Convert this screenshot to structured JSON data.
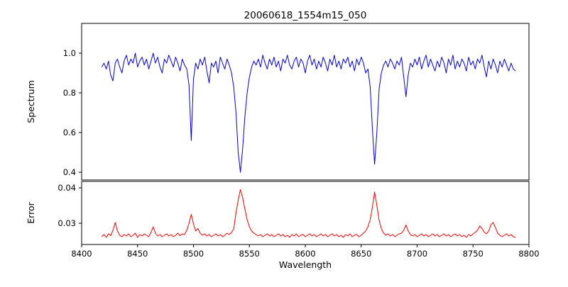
{
  "chart_data": {
    "type": "line",
    "title": "20060618_1554m15_050",
    "xlabel": "Wavelength",
    "xlim": [
      8400,
      8800
    ],
    "xticks": [
      8400,
      8450,
      8500,
      8550,
      8600,
      8650,
      8700,
      8750,
      8800
    ],
    "xticklabels": [
      "8400",
      "8450",
      "8500",
      "8550",
      "8600",
      "8650",
      "8700",
      "8750",
      "8800"
    ],
    "x_start": 8418,
    "x_step": 2,
    "grid": false,
    "legend": "none",
    "panels": [
      {
        "name": "spectrum",
        "ylabel": "Spectrum",
        "color": "#0000cc",
        "ylim": [
          0.361,
          1.15
        ],
        "yticks": [
          0.4,
          0.6,
          0.8,
          1.0
        ],
        "yticklabels": [
          "0.4",
          "0.6",
          "0.8",
          "1.0"
        ],
        "absorption_lines": [
          8498,
          8542,
          8662
        ],
        "values": [
          0.93,
          0.95,
          0.92,
          0.96,
          0.89,
          0.86,
          0.95,
          0.97,
          0.93,
          0.9,
          0.96,
          0.99,
          0.94,
          0.97,
          0.95,
          1.0,
          0.93,
          0.96,
          0.98,
          0.94,
          0.97,
          0.92,
          0.96,
          1.0,
          0.95,
          0.98,
          0.93,
          0.9,
          0.97,
          0.95,
          0.99,
          0.96,
          0.93,
          0.98,
          0.95,
          0.91,
          0.97,
          0.94,
          0.92,
          0.84,
          0.56,
          0.87,
          0.95,
          0.92,
          0.97,
          0.94,
          0.98,
          0.91,
          0.85,
          0.95,
          0.93,
          0.96,
          0.9,
          0.98,
          0.95,
          0.92,
          0.97,
          0.94,
          0.9,
          0.83,
          0.7,
          0.5,
          0.4,
          0.52,
          0.68,
          0.8,
          0.88,
          0.93,
          0.96,
          0.94,
          0.97,
          0.93,
          0.99,
          0.95,
          0.92,
          0.97,
          0.94,
          0.98,
          0.93,
          0.96,
          0.91,
          0.97,
          0.95,
          0.99,
          0.94,
          0.92,
          0.96,
          0.98,
          0.93,
          0.97,
          0.95,
          0.9,
          0.96,
          0.99,
          0.94,
          0.97,
          0.92,
          0.96,
          0.93,
          0.98,
          0.95,
          0.91,
          0.97,
          0.94,
          0.99,
          0.93,
          0.96,
          0.92,
          0.97,
          0.95,
          0.98,
          0.93,
          0.96,
          0.91,
          0.97,
          0.94,
          0.98,
          0.95,
          0.9,
          0.92,
          0.83,
          0.62,
          0.44,
          0.6,
          0.82,
          0.9,
          0.94,
          0.96,
          0.93,
          0.97,
          0.95,
          0.92,
          0.96,
          0.94,
          0.98,
          0.88,
          0.78,
          0.89,
          0.95,
          0.93,
          0.97,
          0.94,
          0.98,
          0.92,
          0.96,
          0.99,
          0.93,
          0.97,
          0.94,
          0.91,
          0.96,
          0.93,
          0.98,
          0.95,
          0.9,
          0.97,
          0.94,
          0.99,
          0.92,
          0.96,
          0.93,
          0.97,
          0.95,
          0.91,
          0.98,
          0.94,
          0.96,
          0.92,
          0.97,
          0.95,
          0.99,
          0.93,
          0.88,
          0.96,
          0.92,
          0.97,
          0.94,
          0.9,
          0.96,
          0.93,
          0.97,
          0.94,
          0.91,
          0.95,
          0.92,
          0.91
        ]
      },
      {
        "name": "error",
        "ylabel": "Error",
        "color": "#ee0000",
        "ylim": [
          0.024,
          0.0418
        ],
        "yticks": [
          0.03,
          0.04
        ],
        "yticklabels": [
          "0.03",
          "0.04"
        ],
        "values": [
          0.0262,
          0.0268,
          0.026,
          0.027,
          0.0265,
          0.028,
          0.0302,
          0.0278,
          0.0266,
          0.0262,
          0.0268,
          0.0264,
          0.027,
          0.0262,
          0.0266,
          0.0272,
          0.026,
          0.0268,
          0.0264,
          0.027,
          0.0266,
          0.0262,
          0.0274,
          0.029,
          0.0272,
          0.0264,
          0.0268,
          0.0262,
          0.0266,
          0.027,
          0.0264,
          0.0268,
          0.0262,
          0.0266,
          0.0272,
          0.0265,
          0.027,
          0.0268,
          0.028,
          0.03,
          0.0325,
          0.0298,
          0.0278,
          0.0285,
          0.0272,
          0.0266,
          0.027,
          0.0264,
          0.0268,
          0.0262,
          0.0266,
          0.027,
          0.0264,
          0.0268,
          0.0262,
          0.0266,
          0.0272,
          0.0268,
          0.0274,
          0.0284,
          0.033,
          0.0365,
          0.0395,
          0.0372,
          0.034,
          0.031,
          0.029,
          0.0278,
          0.0272,
          0.0268,
          0.0264,
          0.0268,
          0.0262,
          0.0266,
          0.027,
          0.0264,
          0.0268,
          0.0262,
          0.0266,
          0.027,
          0.0264,
          0.0268,
          0.0262,
          0.0266,
          0.026,
          0.0268,
          0.0264,
          0.027,
          0.0262,
          0.0266,
          0.0268,
          0.0262,
          0.0266,
          0.027,
          0.0264,
          0.0268,
          0.0262,
          0.0266,
          0.027,
          0.0264,
          0.0268,
          0.0262,
          0.0266,
          0.027,
          0.0264,
          0.0268,
          0.0262,
          0.0266,
          0.026,
          0.0268,
          0.0264,
          0.027,
          0.0262,
          0.0266,
          0.0268,
          0.0262,
          0.0266,
          0.0272,
          0.0278,
          0.029,
          0.031,
          0.0345,
          0.0388,
          0.035,
          0.0308,
          0.0285,
          0.0272,
          0.0266,
          0.027,
          0.0264,
          0.0268,
          0.0262,
          0.0266,
          0.027,
          0.0272,
          0.028,
          0.0295,
          0.0278,
          0.0268,
          0.0264,
          0.0268,
          0.0262,
          0.0266,
          0.027,
          0.0264,
          0.0268,
          0.0262,
          0.0266,
          0.027,
          0.0264,
          0.0268,
          0.0262,
          0.0266,
          0.027,
          0.0264,
          0.0268,
          0.0262,
          0.0266,
          0.027,
          0.0264,
          0.0268,
          0.0262,
          0.0266,
          0.026,
          0.0268,
          0.0264,
          0.027,
          0.0274,
          0.028,
          0.0292,
          0.0285,
          0.0275,
          0.027,
          0.0278,
          0.0296,
          0.0302,
          0.0288,
          0.0272,
          0.0266,
          0.0262,
          0.0266,
          0.027,
          0.0264,
          0.0268,
          0.0262,
          0.026
        ]
      }
    ]
  }
}
